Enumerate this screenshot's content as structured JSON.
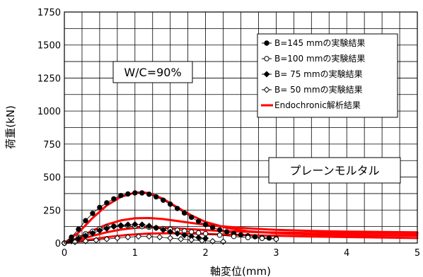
{
  "chart_data": {
    "type": "scatter",
    "xlabel": "軸変位(mm)",
    "ylabel": "荷重(kN)",
    "xlim": [
      0,
      5
    ],
    "ylim": [
      0,
      1750
    ],
    "x_ticks": [
      "0",
      "1",
      "2",
      "3",
      "4",
      "5"
    ],
    "y_ticks": [
      "0",
      "250",
      "500",
      "750",
      "1000",
      "1250",
      "1500",
      "1750"
    ],
    "grid": true,
    "legend_position": "top-right",
    "annotations": {
      "wc": "W/C=90%",
      "material": "プレーンモルタル"
    },
    "colors": {
      "experiment": "#000000",
      "analysis": "#ff0000"
    },
    "series": [
      {
        "name": "B=145 mmの実験結果",
        "marker": "filled-circle",
        "points": [
          [
            0.0,
            0
          ],
          [
            0.1,
            45
          ],
          [
            0.2,
            105
          ],
          [
            0.3,
            170
          ],
          [
            0.4,
            225
          ],
          [
            0.5,
            270
          ],
          [
            0.6,
            305
          ],
          [
            0.7,
            335
          ],
          [
            0.8,
            360
          ],
          [
            0.9,
            372
          ],
          [
            1.0,
            380
          ],
          [
            1.1,
            380
          ],
          [
            1.2,
            370
          ],
          [
            1.3,
            350
          ],
          [
            1.4,
            325
          ],
          [
            1.5,
            295
          ],
          [
            1.6,
            262
          ],
          [
            1.7,
            228
          ],
          [
            1.8,
            195
          ],
          [
            1.9,
            165
          ],
          [
            2.0,
            140
          ],
          [
            2.1,
            118
          ],
          [
            2.2,
            100
          ],
          [
            2.3,
            85
          ],
          [
            2.4,
            72
          ],
          [
            2.5,
            62
          ],
          [
            2.6,
            55
          ],
          [
            2.7,
            48
          ],
          [
            2.8,
            42
          ],
          [
            2.9,
            38
          ],
          [
            3.0,
            35
          ]
        ]
      },
      {
        "name": "B=100 mmの実験結果",
        "marker": "open-circle",
        "points": [
          [
            0.0,
            0
          ],
          [
            0.1,
            20
          ],
          [
            0.2,
            45
          ],
          [
            0.3,
            70
          ],
          [
            0.4,
            90
          ],
          [
            0.5,
            108
          ],
          [
            0.6,
            120
          ],
          [
            0.7,
            128
          ],
          [
            0.8,
            130
          ],
          [
            0.9,
            130
          ],
          [
            1.0,
            128
          ],
          [
            1.1,
            125
          ],
          [
            1.2,
            120
          ],
          [
            1.3,
            115
          ],
          [
            1.4,
            110
          ],
          [
            1.5,
            104
          ],
          [
            1.6,
            98
          ],
          [
            1.7,
            92
          ],
          [
            1.8,
            85
          ],
          [
            1.9,
            78
          ],
          [
            2.0,
            72
          ],
          [
            2.2,
            60
          ],
          [
            2.4,
            50
          ],
          [
            2.6,
            42
          ],
          [
            2.8,
            36
          ],
          [
            3.0,
            30
          ]
        ]
      },
      {
        "name": "B= 75 mmの実験結果",
        "marker": "filled-diamond",
        "points": [
          [
            0.0,
            0
          ],
          [
            0.1,
            15
          ],
          [
            0.2,
            35
          ],
          [
            0.3,
            55
          ],
          [
            0.4,
            75
          ],
          [
            0.5,
            95
          ],
          [
            0.6,
            110
          ],
          [
            0.7,
            125
          ],
          [
            0.8,
            135
          ],
          [
            0.9,
            140
          ],
          [
            1.0,
            142
          ],
          [
            1.1,
            140
          ],
          [
            1.2,
            130
          ],
          [
            1.3,
            115
          ],
          [
            1.4,
            100
          ],
          [
            1.5,
            85
          ],
          [
            1.6,
            72
          ],
          [
            1.7,
            60
          ],
          [
            1.8,
            50
          ],
          [
            1.9,
            42
          ],
          [
            2.0,
            36
          ]
        ]
      },
      {
        "name": "B= 50 mmの実験結果",
        "marker": "open-diamond",
        "points": [
          [
            0.0,
            0
          ],
          [
            0.15,
            8
          ],
          [
            0.3,
            15
          ],
          [
            0.45,
            22
          ],
          [
            0.6,
            30
          ],
          [
            0.75,
            38
          ],
          [
            0.9,
            45
          ],
          [
            1.05,
            50
          ],
          [
            1.2,
            50
          ],
          [
            1.35,
            45
          ],
          [
            1.5,
            38
          ],
          [
            1.65,
            30
          ],
          [
            1.8,
            24
          ],
          [
            1.95,
            18
          ],
          [
            2.1,
            14
          ],
          [
            2.25,
            11
          ]
        ]
      }
    ],
    "analysis": {
      "name": "Endochronic解析結果",
      "curves": [
        {
          "points": [
            [
              0.0,
              0
            ],
            [
              0.2,
              80
            ],
            [
              0.4,
              190
            ],
            [
              0.6,
              285
            ],
            [
              0.8,
              350
            ],
            [
              1.0,
              382
            ],
            [
              1.1,
              385
            ],
            [
              1.2,
              378
            ],
            [
              1.4,
              335
            ],
            [
              1.6,
              270
            ],
            [
              1.8,
              210
            ],
            [
              2.0,
              160
            ],
            [
              2.3,
              115
            ],
            [
              2.6,
              90
            ],
            [
              3.0,
              75
            ],
            [
              3.5,
              65
            ],
            [
              4.0,
              60
            ],
            [
              4.5,
              58
            ],
            [
              5.0,
              56
            ]
          ]
        },
        {
          "points": [
            [
              0.0,
              0
            ],
            [
              0.2,
              40
            ],
            [
              0.4,
              95
            ],
            [
              0.6,
              140
            ],
            [
              0.8,
              172
            ],
            [
              1.0,
              188
            ],
            [
              1.2,
              190
            ],
            [
              1.4,
              182
            ],
            [
              1.7,
              160
            ],
            [
              2.0,
              138
            ],
            [
              2.5,
              115
            ],
            [
              3.0,
              100
            ],
            [
              3.5,
              92
            ],
            [
              4.0,
              87
            ],
            [
              4.5,
              84
            ],
            [
              5.0,
              82
            ]
          ]
        },
        {
          "points": [
            [
              0.0,
              0
            ],
            [
              0.2,
              25
            ],
            [
              0.4,
              55
            ],
            [
              0.6,
              82
            ],
            [
              0.8,
              102
            ],
            [
              1.0,
              115
            ],
            [
              1.2,
              120
            ],
            [
              1.4,
              118
            ],
            [
              1.8,
              105
            ],
            [
              2.2,
              92
            ],
            [
              2.8,
              82
            ],
            [
              3.5,
              76
            ],
            [
              4.2,
              74
            ],
            [
              5.0,
              72
            ]
          ]
        },
        {
          "points": [
            [
              0.0,
              0
            ],
            [
              0.3,
              20
            ],
            [
              0.6,
              45
            ],
            [
              0.9,
              62
            ],
            [
              1.2,
              72
            ],
            [
              1.5,
              75
            ],
            [
              1.8,
              72
            ],
            [
              2.2,
              66
            ],
            [
              2.8,
              58
            ],
            [
              3.5,
              50
            ],
            [
              4.2,
              44
            ],
            [
              5.0,
              38
            ]
          ]
        }
      ]
    }
  }
}
